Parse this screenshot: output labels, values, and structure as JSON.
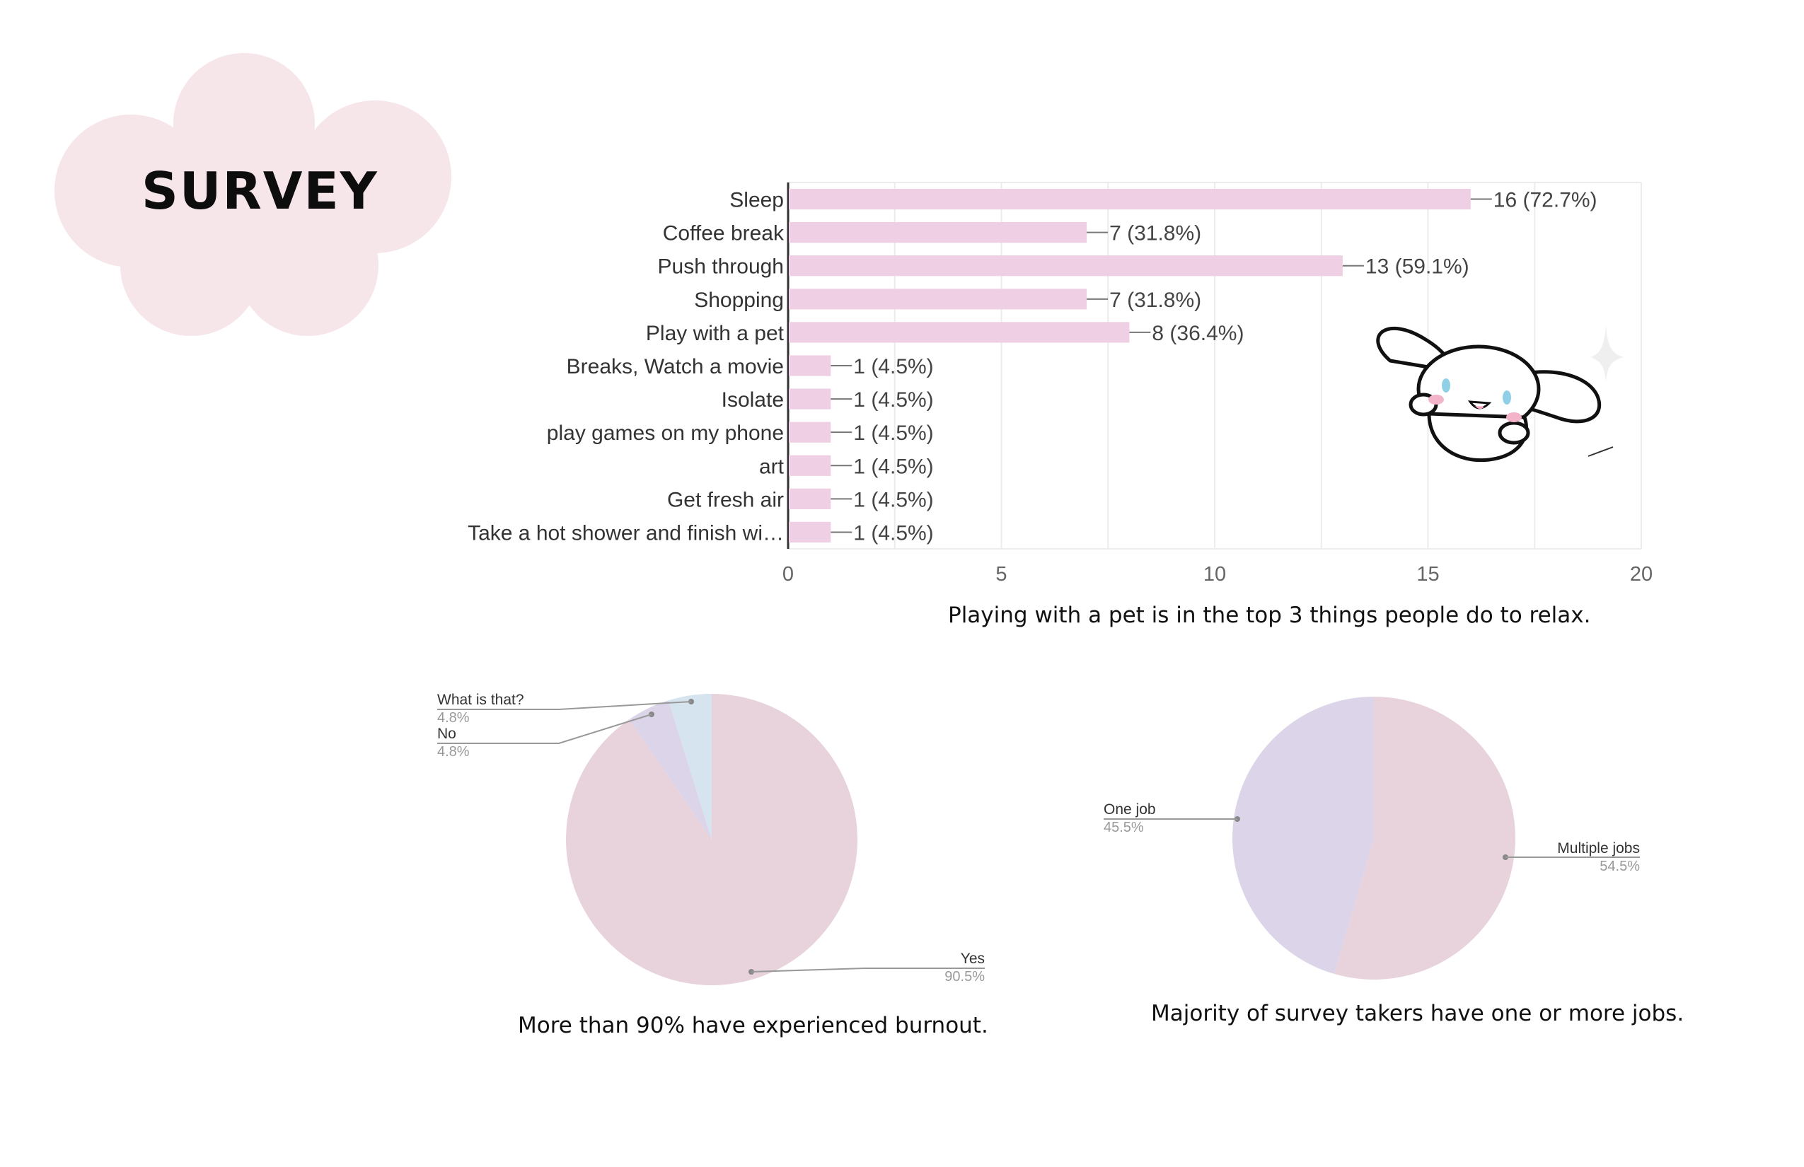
{
  "page": {
    "title": "SURVEY",
    "colors": {
      "cloud": "#f6e6ea",
      "bar": "#efcfe3",
      "pie_pink": "#e8d3dc",
      "pie_lavender": "#dcd4e8",
      "pie_blue": "#d6e4f0"
    }
  },
  "captions": {
    "bar": "Playing with a pet is in the top 3 things people do to relax.",
    "pie1": "More than 90% have experienced burnout.",
    "pie2": "Majority of survey takers have one or more jobs."
  },
  "mascot": {
    "icon": "bunny-mascot-icon"
  },
  "chart_data": [
    {
      "type": "bar",
      "orientation": "horizontal",
      "categories": [
        "Sleep",
        "Coffee break",
        "Push through",
        "Shopping",
        "Play with a pet",
        "Breaks, Watch a movie",
        "Isolate",
        "play games on my phone",
        "art",
        "Get fresh air",
        "Take a hot shower and finish wi…"
      ],
      "values": [
        16,
        7,
        13,
        7,
        8,
        1,
        1,
        1,
        1,
        1,
        1
      ],
      "data_labels": [
        "16 (72.7%)",
        "7 (31.8%)",
        "13 (59.1%)",
        "7 (31.8%)",
        "8 (36.4%)",
        "1 (4.5%)",
        "1 (4.5%)",
        "1 (4.5%)",
        "1 (4.5%)",
        "1 (4.5%)",
        "1 (4.5%)"
      ],
      "xlim": [
        0,
        20
      ],
      "xticks": [
        0,
        5,
        10,
        15,
        20
      ],
      "grid": true,
      "color": "#efcfe3"
    },
    {
      "type": "pie",
      "slices": [
        {
          "label": "Yes",
          "value": 90.5,
          "pct": "90.5%",
          "color": "#e8d3dc"
        },
        {
          "label": "No",
          "value": 4.8,
          "pct": "4.8%",
          "color": "#dcd4e8"
        },
        {
          "label": "What is that?",
          "value": 4.8,
          "pct": "4.8%",
          "color": "#d6e4f0"
        }
      ]
    },
    {
      "type": "pie",
      "slices": [
        {
          "label": "Multiple jobs",
          "value": 54.5,
          "pct": "54.5%",
          "color": "#e8d3dc"
        },
        {
          "label": "One job",
          "value": 45.5,
          "pct": "45.5%",
          "color": "#dcd4e8"
        }
      ]
    }
  ]
}
